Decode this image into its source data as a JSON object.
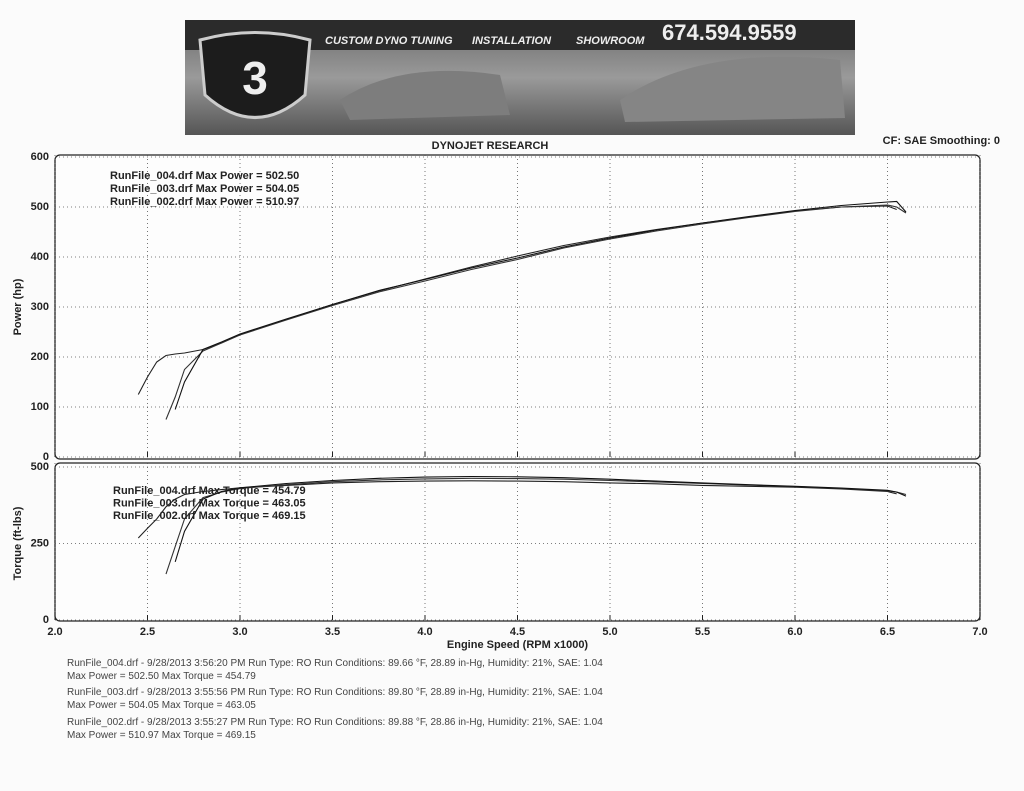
{
  "header": {
    "tagline": [
      "CUSTOM DYNO TUNING",
      "INSTALLATION",
      "SHOWROOM"
    ],
    "phone": "674.594.9559",
    "title": "DYNOJET RESEARCH",
    "settings": "CF: SAE  Smoothing: 0"
  },
  "chart_data": [
    {
      "type": "line",
      "ylabel": "Power (hp)",
      "ylim": [
        0,
        600
      ],
      "yticks": [
        0,
        100,
        200,
        300,
        400,
        500,
        600
      ],
      "xlim": [
        2,
        7
      ],
      "xticks": [
        2,
        2.5,
        3,
        3.5,
        4,
        4.5,
        5,
        5.5,
        6,
        6.5,
        7
      ],
      "grid": true,
      "annotations": [
        "RunFile_004.drf Max Power = 502.50",
        "RunFile_003.drf Max Power = 504.05",
        "RunFile_002.drf Max Power = 510.97"
      ],
      "x": [
        2.45,
        2.5,
        2.55,
        2.6,
        2.65,
        2.7,
        2.8,
        2.9,
        3.0,
        3.25,
        3.5,
        3.75,
        4.0,
        4.25,
        4.5,
        4.75,
        5.0,
        5.25,
        5.5,
        5.75,
        6.0,
        6.25,
        6.5,
        6.55,
        6.6
      ],
      "series": [
        {
          "color": "#222222",
          "values": [
            125,
            160,
            190,
            203,
            206,
            208,
            215,
            228,
            245,
            275,
            305,
            332,
            356,
            380,
            402,
            423,
            440,
            455,
            468,
            480,
            492,
            500,
            502,
            495,
            null
          ]
        },
        {
          "color": "#333333",
          "values": [
            null,
            null,
            null,
            75,
            120,
            175,
            212,
            228,
            244,
            274,
            303,
            330,
            352,
            375,
            395,
            418,
            436,
            452,
            466,
            479,
            491,
            500,
            504,
            500,
            488
          ]
        },
        {
          "color": "#111111",
          "values": [
            null,
            null,
            null,
            null,
            95,
            150,
            215,
            230,
            246,
            276,
            305,
            333,
            355,
            378,
            398,
            420,
            438,
            454,
            468,
            481,
            493,
            503,
            510,
            511,
            490
          ]
        }
      ]
    },
    {
      "type": "line",
      "ylabel": "Torque (ft-lbs)",
      "xlabel": "Engine Speed (RPM x1000)",
      "ylim": [
        0,
        500
      ],
      "yticks": [
        0,
        250,
        500
      ],
      "xlim": [
        2,
        7
      ],
      "xticks": [
        {
          "value": 2,
          "label": "2.0"
        },
        2.5,
        {
          "value": 3,
          "label": "3.0"
        },
        3.5,
        {
          "value": 4,
          "label": "4.0"
        },
        4.5,
        {
          "value": 5,
          "label": "5.0"
        },
        5.5,
        {
          "value": 6,
          "label": "6.0"
        },
        6.5,
        {
          "value": 7,
          "label": "7.0"
        }
      ],
      "grid": true,
      "annotations": [
        "RunFile_004.drf Max Torque = 454.79",
        "RunFile_003.drf Max Torque = 463.05",
        "RunFile_002.drf Max Torque = 469.15"
      ],
      "x": [
        2.45,
        2.5,
        2.55,
        2.6,
        2.65,
        2.7,
        2.8,
        2.9,
        3.0,
        3.25,
        3.5,
        3.75,
        4.0,
        4.25,
        4.5,
        4.75,
        5.0,
        5.25,
        5.5,
        5.75,
        6.0,
        6.25,
        6.5,
        6.55,
        6.6
      ],
      "series": [
        {
          "color": "#222222",
          "values": [
            268,
            300,
            330,
            370,
            395,
            410,
            420,
            426,
            432,
            440,
            448,
            452,
            454,
            455,
            454,
            452,
            448,
            445,
            440,
            437,
            434,
            428,
            420,
            412,
            null
          ]
        },
        {
          "color": "#333333",
          "values": [
            null,
            null,
            null,
            150,
            240,
            330,
            400,
            418,
            430,
            442,
            452,
            458,
            461,
            463,
            462,
            460,
            456,
            451,
            446,
            441,
            436,
            430,
            422,
            418,
            410
          ]
        },
        {
          "color": "#111111",
          "values": [
            null,
            null,
            null,
            null,
            190,
            290,
            395,
            420,
            432,
            446,
            456,
            463,
            467,
            469,
            468,
            465,
            460,
            454,
            448,
            442,
            437,
            431,
            424,
            418,
            405
          ]
        }
      ]
    }
  ],
  "notes": [
    "RunFile_004.drf - 9/28/2013 3:56:20 PM  Run Type: RO  Run Conditions: 89.66 °F, 28.89 in-Hg,  Humidity:  21%, SAE: 1.04",
    "Max Power = 502.50  Max Torque = 454.79",
    "RunFile_003.drf - 9/28/2013 3:55:56 PM  Run Type: RO  Run Conditions: 89.80 °F, 28.89 in-Hg,  Humidity:  21%, SAE: 1.04",
    "Max Power = 504.05  Max Torque = 463.05",
    "RunFile_002.drf - 9/28/2013 3:55:27 PM  Run Type: RO  Run Conditions: 89.88 °F, 28.86 in-Hg,  Humidity:  21%, SAE: 1.04",
    "Max Power = 510.97  Max Torque = 469.15"
  ]
}
